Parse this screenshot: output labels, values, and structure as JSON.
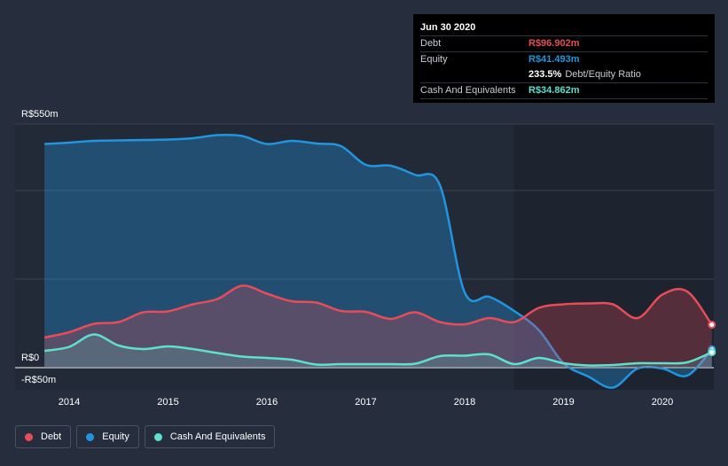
{
  "chart_data": {
    "type": "area",
    "x_range": [
      2013.5,
      2020.5
    ],
    "ylim": [
      -50,
      550
    ],
    "y_ticks": [
      {
        "value": 550,
        "label": "R$550m"
      },
      {
        "value": 0,
        "label": "R$0"
      },
      {
        "value": -50,
        "label": "-R$50m"
      }
    ],
    "x_ticks": [
      {
        "value": 2014,
        "label": "2014"
      },
      {
        "value": 2015,
        "label": "2015"
      },
      {
        "value": 2016,
        "label": "2016"
      },
      {
        "value": 2017,
        "label": "2017"
      },
      {
        "value": 2018,
        "label": "2018"
      },
      {
        "value": 2019,
        "label": "2019"
      },
      {
        "value": 2020,
        "label": "2020"
      }
    ],
    "gridlines": [
      550,
      400,
      200,
      0
    ],
    "series": [
      {
        "name": "Equity",
        "color": "#2394df",
        "x": [
          2013.75,
          2014.0,
          2014.25,
          2014.5,
          2014.75,
          2015.0,
          2015.25,
          2015.5,
          2015.75,
          2016.0,
          2016.25,
          2016.5,
          2016.75,
          2017.0,
          2017.25,
          2017.5,
          2017.75,
          2018.0,
          2018.25,
          2018.5,
          2018.75,
          2019.0,
          2019.25,
          2019.5,
          2019.75,
          2020.0,
          2020.25,
          2020.5
        ],
        "values": [
          505,
          508,
          512,
          513,
          514,
          515,
          518,
          525,
          523,
          505,
          512,
          506,
          500,
          458,
          456,
          435,
          412,
          170,
          160,
          128,
          85,
          10,
          -20,
          -45,
          -2,
          -2,
          -18,
          41.493
        ]
      },
      {
        "name": "Debt",
        "color": "#e64d58",
        "x": [
          2013.75,
          2014.0,
          2014.25,
          2014.5,
          2014.75,
          2015.0,
          2015.25,
          2015.5,
          2015.75,
          2016.0,
          2016.25,
          2016.5,
          2016.75,
          2017.0,
          2017.25,
          2017.5,
          2017.75,
          2018.0,
          2018.25,
          2018.5,
          2018.75,
          2019.0,
          2019.25,
          2019.5,
          2019.75,
          2020.0,
          2020.25,
          2020.5
        ],
        "values": [
          68,
          80,
          99,
          103,
          125,
          127,
          143,
          155,
          185,
          167,
          150,
          147,
          128,
          126,
          110,
          125,
          103,
          98,
          112,
          103,
          135,
          143,
          145,
          143,
          112,
          165,
          172,
          96.902
        ]
      },
      {
        "name": "Cash And Equivalents",
        "color": "#5ee0cc",
        "x": [
          2013.75,
          2014.0,
          2014.25,
          2014.5,
          2014.75,
          2015.0,
          2015.25,
          2015.5,
          2015.75,
          2016.0,
          2016.25,
          2016.5,
          2016.75,
          2017.0,
          2017.25,
          2017.5,
          2017.75,
          2018.0,
          2018.25,
          2018.5,
          2018.75,
          2019.0,
          2019.25,
          2019.5,
          2019.75,
          2020.0,
          2020.25,
          2020.5
        ],
        "values": [
          38,
          47,
          75,
          50,
          42,
          48,
          42,
          33,
          25,
          22,
          18,
          7,
          8,
          8,
          8,
          9,
          26,
          27,
          30,
          8,
          22,
          10,
          5,
          6,
          10,
          10,
          12,
          34.862
        ]
      }
    ]
  },
  "tooltip": {
    "date": "Jun 30 2020",
    "debt_label": "Debt",
    "debt_value": "R$96.902m",
    "equity_label": "Equity",
    "equity_value": "R$41.493m",
    "ratio_value": "233.5%",
    "ratio_label": "Debt/Equity Ratio",
    "cash_label": "Cash And Equivalents",
    "cash_value": "R$34.862m",
    "colors": {
      "debt": "#e64d58",
      "equity": "#2394df",
      "cash": "#5ee0cc"
    }
  },
  "legend": [
    {
      "label": "Debt",
      "color": "#e64d58"
    },
    {
      "label": "Equity",
      "color": "#2394df"
    },
    {
      "label": "Cash And Equivalents",
      "color": "#5ee0cc"
    }
  ]
}
